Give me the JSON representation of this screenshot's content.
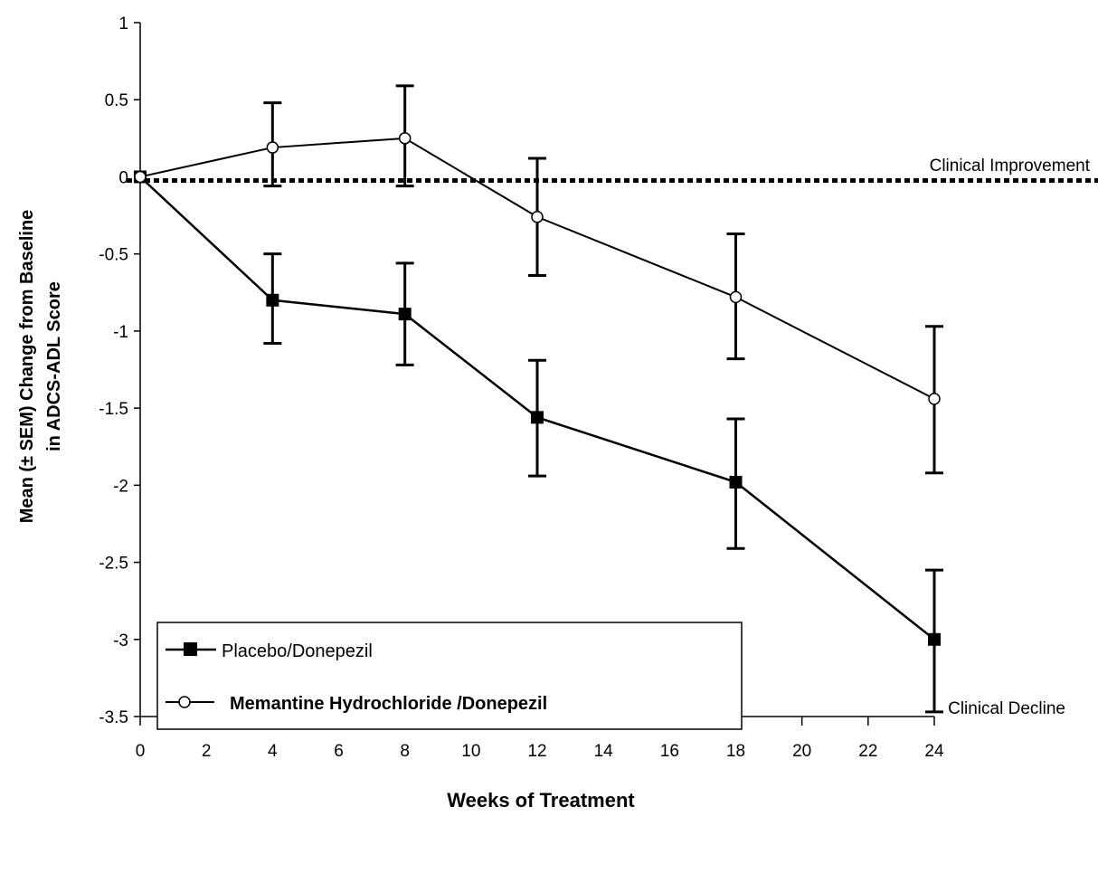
{
  "chart_data": {
    "type": "line",
    "xlabel": "Weeks of Treatment",
    "ylabel_line1": "Mean (± SEM) Change from Baseline",
    "ylabel_line2": "in ADCS-ADL Score",
    "xlim": [
      0,
      24
    ],
    "ylim": [
      -3.5,
      1
    ],
    "x_ticks": [
      0,
      2,
      4,
      6,
      8,
      10,
      12,
      14,
      16,
      18,
      20,
      22,
      24
    ],
    "y_ticks": [
      1,
      0.5,
      0,
      -0.5,
      -1,
      -1.5,
      -2,
      -2.5,
      -3,
      -3.5
    ],
    "grid": false,
    "reference_line": {
      "y": 0,
      "style": "dotted"
    },
    "annotations": {
      "improvement": "Clinical Improvement",
      "decline": "Clinical Decline"
    },
    "legend_position": "bottom-left",
    "series": [
      {
        "name": "Placebo/Donepezil",
        "marker": "filled-square",
        "x": [
          0,
          4,
          8,
          12,
          18,
          24
        ],
        "y": [
          0,
          -0.8,
          -0.89,
          -1.56,
          -1.98,
          -3.0
        ],
        "err_high": [
          0,
          -0.5,
          -0.56,
          -1.19,
          -1.57,
          -2.55
        ],
        "err_low": [
          0,
          -1.08,
          -1.22,
          -1.94,
          -2.41,
          -3.47
        ]
      },
      {
        "name": "Memantine Hydrochloride /Donepezil",
        "marker": "open-circle",
        "x": [
          0,
          4,
          8,
          12,
          18,
          24
        ],
        "y": [
          0,
          0.19,
          0.25,
          -0.26,
          -0.78,
          -1.44
        ],
        "err_high": [
          0,
          0.48,
          0.59,
          0.12,
          -0.37,
          -0.97
        ],
        "err_low": [
          0,
          -0.06,
          -0.06,
          -0.64,
          -1.18,
          -1.92
        ]
      }
    ]
  }
}
